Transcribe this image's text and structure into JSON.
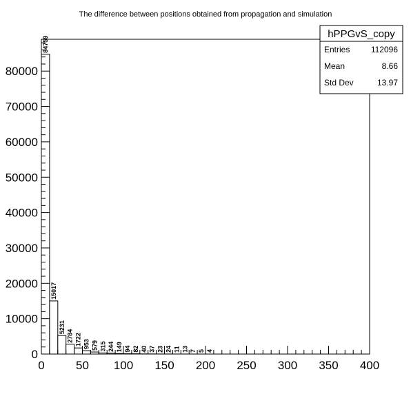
{
  "chart_data": {
    "type": "bar",
    "title": "The difference between positions obtained from propagation and simulation",
    "xlabel": "",
    "ylabel": "",
    "xlim": [
      0,
      400
    ],
    "ylim": [
      0,
      89000
    ],
    "bin_width": 10,
    "x_ticks": [
      0,
      50,
      100,
      150,
      200,
      250,
      300,
      350,
      400
    ],
    "y_ticks": [
      0,
      10000,
      20000,
      30000,
      40000,
      50000,
      60000,
      70000,
      80000
    ],
    "bins": [
      {
        "x": 0,
        "value": 84759
      },
      {
        "x": 10,
        "value": 15017
      },
      {
        "x": 20,
        "value": 5231
      },
      {
        "x": 30,
        "value": 2784
      },
      {
        "x": 40,
        "value": 1722
      },
      {
        "x": 50,
        "value": 953
      },
      {
        "x": 60,
        "value": 579
      },
      {
        "x": 70,
        "value": 315
      },
      {
        "x": 80,
        "value": 244
      },
      {
        "x": 90,
        "value": 149
      },
      {
        "x": 100,
        "value": 94
      },
      {
        "x": 110,
        "value": 82
      },
      {
        "x": 120,
        "value": 40
      },
      {
        "x": 130,
        "value": 37
      },
      {
        "x": 140,
        "value": 23
      },
      {
        "x": 150,
        "value": 24
      },
      {
        "x": 160,
        "value": 11
      },
      {
        "x": 170,
        "value": 13
      },
      {
        "x": 180,
        "value": 7
      },
      {
        "x": 190,
        "value": 5
      },
      {
        "x": 200,
        "value": 4
      }
    ],
    "legend": "top-right",
    "stats_box": {
      "name": "hPPGvS_copy",
      "rows": [
        {
          "label": "Entries",
          "value": "112096"
        },
        {
          "label": "Mean",
          "value": "8.66"
        },
        {
          "label": "Std Dev",
          "value": "13.97"
        }
      ]
    }
  }
}
